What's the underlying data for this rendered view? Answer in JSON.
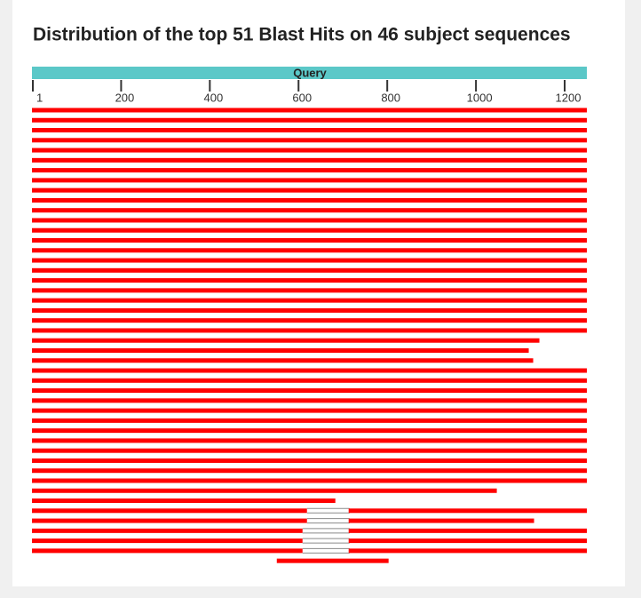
{
  "chart_data": {
    "type": "alignment",
    "title": "Distribution of the top 51 Blast Hits on 46 subject sequences",
    "query_label": "Query",
    "query_color": "#5bc8c8",
    "color": "#ff0000",
    "gap_color": "#8a8a8a",
    "xlim": [
      1,
      1250
    ],
    "xticks": [
      1,
      200,
      400,
      600,
      800,
      1000,
      1200
    ],
    "hits": [
      [
        [
          1,
          1250
        ]
      ],
      [
        [
          1,
          1250
        ]
      ],
      [
        [
          1,
          1250
        ]
      ],
      [
        [
          1,
          1250
        ]
      ],
      [
        [
          1,
          1250
        ]
      ],
      [
        [
          1,
          1250
        ]
      ],
      [
        [
          1,
          1250
        ]
      ],
      [
        [
          1,
          1250
        ]
      ],
      [
        [
          1,
          1250
        ]
      ],
      [
        [
          1,
          1250
        ]
      ],
      [
        [
          1,
          1250
        ]
      ],
      [
        [
          1,
          1250
        ]
      ],
      [
        [
          1,
          1250
        ]
      ],
      [
        [
          1,
          1250
        ]
      ],
      [
        [
          1,
          1250
        ]
      ],
      [
        [
          1,
          1250
        ]
      ],
      [
        [
          1,
          1250
        ]
      ],
      [
        [
          1,
          1250
        ]
      ],
      [
        [
          1,
          1250
        ]
      ],
      [
        [
          1,
          1250
        ]
      ],
      [
        [
          1,
          1250
        ]
      ],
      [
        [
          1,
          1250
        ]
      ],
      [
        [
          1,
          1250
        ]
      ],
      [
        [
          1,
          1143
        ]
      ],
      [
        [
          1,
          1119
        ]
      ],
      [
        [
          1,
          1129
        ]
      ],
      [
        [
          1,
          1250
        ]
      ],
      [
        [
          1,
          1250
        ]
      ],
      [
        [
          1,
          1250
        ]
      ],
      [
        [
          1,
          1250
        ]
      ],
      [
        [
          1,
          1250
        ]
      ],
      [
        [
          1,
          1250
        ]
      ],
      [
        [
          1,
          1250
        ]
      ],
      [
        [
          1,
          1250
        ]
      ],
      [
        [
          1,
          1250
        ]
      ],
      [
        [
          1,
          1250
        ]
      ],
      [
        [
          1,
          1250
        ]
      ],
      [
        [
          1,
          1250
        ]
      ],
      [
        [
          1,
          1047
        ]
      ],
      [
        [
          1,
          683
        ]
      ],
      [
        [
          1,
          619
        ],
        [
          715,
          1250
        ]
      ],
      [
        [
          1,
          619
        ],
        [
          715,
          1131
        ]
      ],
      [
        [
          1,
          609
        ],
        [
          715,
          1250
        ]
      ],
      [
        [
          1,
          609
        ],
        [
          715,
          1250
        ]
      ],
      [
        [
          1,
          609
        ],
        [
          715,
          1250
        ]
      ],
      [
        [
          553,
          803
        ]
      ]
    ]
  }
}
